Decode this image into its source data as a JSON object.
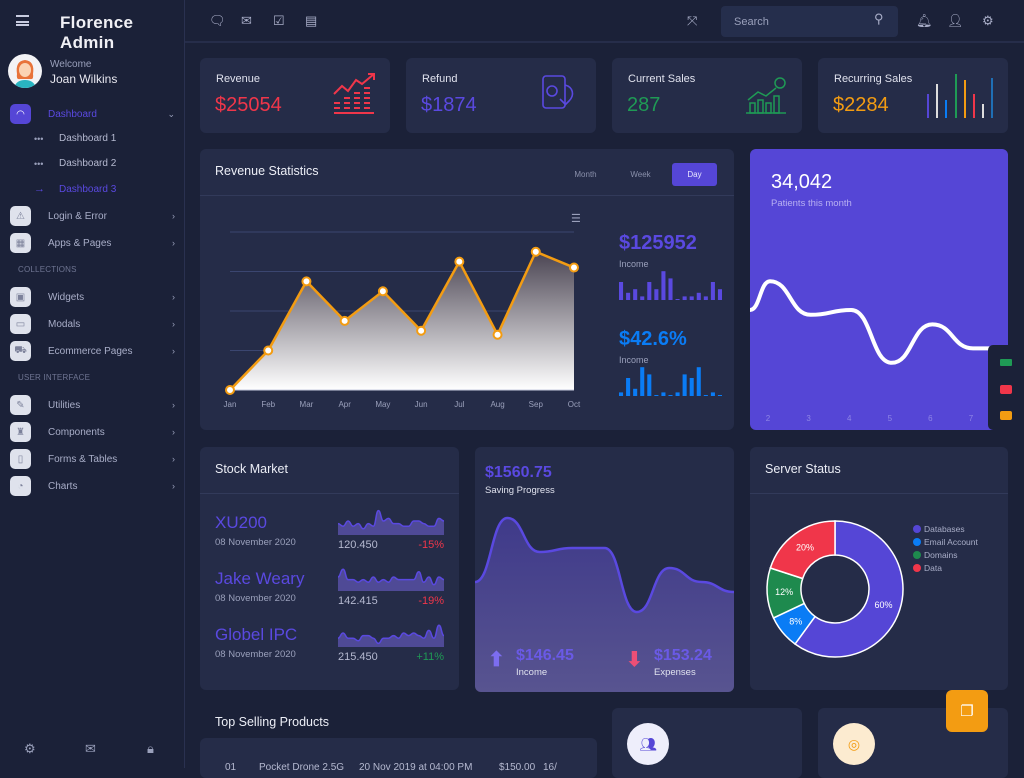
{
  "app": {
    "title": "Florence Admin"
  },
  "user": {
    "welcome": "Welcome",
    "name": "Joan Wilkins"
  },
  "sidebar": {
    "dashboard": {
      "label": "Dashboard",
      "icon": "dashboard-gauge-icon",
      "subitems": [
        {
          "label": "Dashboard 1",
          "active": false
        },
        {
          "label": "Dashboard 2",
          "active": false
        },
        {
          "label": "Dashboard 3",
          "active": true
        }
      ]
    },
    "items1": [
      {
        "label": "Login & Error",
        "icon": "warning-icon"
      },
      {
        "label": "Apps & Pages",
        "icon": "grid-icon"
      }
    ],
    "section1": "COLLECTIONS",
    "items2": [
      {
        "label": "Widgets",
        "icon": "widget-icon"
      },
      {
        "label": "Modals",
        "icon": "modal-icon"
      },
      {
        "label": "Ecommerce Pages",
        "icon": "cart-icon"
      }
    ],
    "section2": "USER INTERFACE",
    "items3": [
      {
        "label": "Utilities",
        "icon": "edit-icon"
      },
      {
        "label": "Components",
        "icon": "trophy-icon"
      },
      {
        "label": "Forms & Tables",
        "icon": "file-icon"
      },
      {
        "label": "Charts",
        "icon": "pie-icon"
      }
    ],
    "footer_icons": [
      "settings-icon",
      "mail-icon",
      "lock-icon"
    ]
  },
  "topbar": {
    "search_placeholder": "Search",
    "left_icons": [
      "chat-icon",
      "mail-icon",
      "checkbox-icon",
      "calendar-icon"
    ],
    "right_icons": [
      "fullscreen-icon",
      "bell-icon",
      "user-icon",
      "settings-icon"
    ]
  },
  "stats": [
    {
      "label": "Revenue",
      "value": "$25054",
      "color": "#f0364a",
      "icon": "growth-chart-icon"
    },
    {
      "label": "Refund",
      "value": "$1874",
      "color": "#5a49e0",
      "icon": "money-refund-icon"
    },
    {
      "label": "Current Sales",
      "value": "287",
      "color": "#1f9a55",
      "icon": "sales-chart-icon"
    },
    {
      "label": "Recurring Sales",
      "value": "$2284",
      "color": "#f39c12",
      "icon": "bars-icon"
    }
  ],
  "revenue_stats": {
    "title": "Revenue Statistics",
    "tabs": [
      {
        "label": "Month",
        "active": false
      },
      {
        "label": "Week",
        "active": false
      },
      {
        "label": "Day",
        "active": true
      }
    ],
    "income1": {
      "value": "$125952",
      "label": "Income",
      "color": "#5a49e0",
      "bars": [
        5,
        2,
        3,
        1,
        5,
        3,
        8,
        6,
        0,
        1,
        1,
        2,
        1,
        5,
        3
      ]
    },
    "income2": {
      "value": "$42.6%",
      "label": "Income",
      "color": "#0a7cf5",
      "bars": [
        1,
        5,
        2,
        8,
        6,
        0,
        1,
        0,
        1,
        6,
        5,
        8,
        0,
        1,
        0
      ]
    }
  },
  "chart_data": [
    {
      "type": "area",
      "title": "",
      "categories": [
        "Jan",
        "Feb",
        "Mar",
        "Apr",
        "May",
        "Jun",
        "Jul",
        "Aug",
        "Sep",
        "Oct"
      ],
      "values": [
        0,
        10,
        27.5,
        17.5,
        25,
        15,
        32.5,
        14,
        35,
        31
      ],
      "ylim": [
        0,
        40
      ],
      "grid": true,
      "color": "#f39c12"
    },
    {
      "type": "line",
      "x": [
        2,
        3,
        4,
        5,
        6,
        7
      ],
      "values": [
        62,
        48,
        50,
        28,
        44,
        34
      ],
      "ylim": [
        0,
        100
      ],
      "color": "#ffffff"
    },
    {
      "type": "pie",
      "categories": [
        "Databases",
        "Email Account",
        "Domains",
        "Data"
      ],
      "values": [
        60,
        8,
        12,
        20
      ],
      "colors": [
        "#5546d6",
        "#0a7cf5",
        "#1e8a4e",
        "#f0364a"
      ],
      "labels": [
        "60%",
        "8%",
        "12%",
        "20%"
      ],
      "legend": "right"
    }
  ],
  "patients": {
    "value": "34,042",
    "label": "Patients this month"
  },
  "stock_market": {
    "title": "Stock Market",
    "rows": [
      {
        "name": "XU200",
        "date": "08 November 2020",
        "value": "120.450",
        "change": "-15%",
        "up": false,
        "spark": [
          4,
          3,
          5,
          3,
          4,
          2,
          4,
          3,
          9,
          5,
          6,
          4,
          4,
          3,
          3,
          5,
          5,
          4,
          3,
          3,
          6,
          5
        ]
      },
      {
        "name": "Jake Weary",
        "date": "08 November 2020",
        "value": "142.415",
        "change": "-19%",
        "up": false,
        "spark": [
          5,
          8,
          4,
          4,
          3,
          4,
          3,
          5,
          3,
          4,
          3,
          5,
          4,
          4,
          4,
          4,
          7,
          3,
          5,
          2,
          5,
          4
        ]
      },
      {
        "name": "Globel IPC",
        "date": "08 November 2020",
        "value": "215.450",
        "change": "+11%",
        "up": true,
        "spark": [
          3,
          5,
          3,
          3,
          2,
          4,
          4,
          3,
          1,
          3,
          3,
          4,
          3,
          5,
          4,
          5,
          4,
          3,
          6,
          3,
          8,
          4
        ]
      }
    ]
  },
  "saving": {
    "value": "$1560.75",
    "label": "Saving Progress",
    "income_value": "$146.45",
    "income_label": "Income",
    "expense_value": "$153.24",
    "expense_label": "Expenses",
    "wave": [
      55,
      87,
      70,
      72,
      72,
      40,
      62,
      55,
      50
    ]
  },
  "server_status": {
    "title": "Server Status"
  },
  "top_selling": {
    "title": "Top Selling Products",
    "rows": [
      {
        "no": "01",
        "product": "Pocket Drone 2.5G",
        "date": "20 Nov 2019 at 04:00 PM",
        "price": "$150.00",
        "qty": "16/"
      }
    ]
  },
  "dock_icons": [
    "money-icon",
    "image-icon",
    "chat-bubbles-icon"
  ],
  "fab_icon": "chat-icon"
}
